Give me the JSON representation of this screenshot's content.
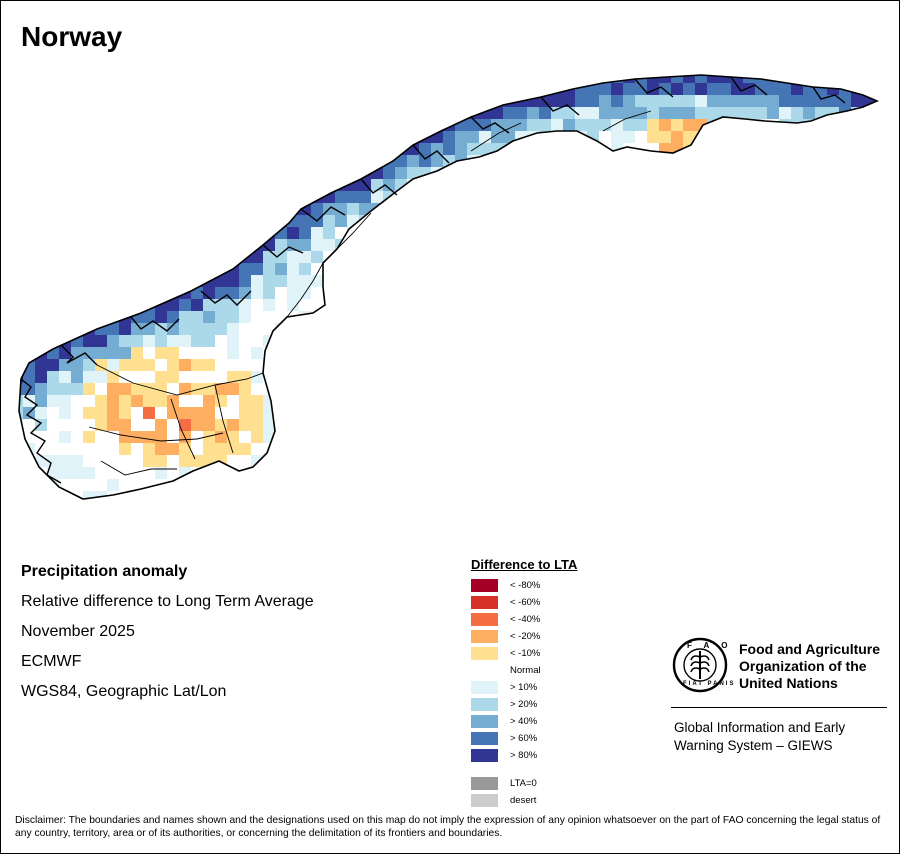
{
  "title": "Norway",
  "info": {
    "heading": "Precipitation anomaly",
    "subtitle": "Relative difference to Long Term Average",
    "period": "November 2025",
    "source": "ECMWF",
    "projection": "WGS84, Geographic Lat/Lon"
  },
  "legend": {
    "title": "Difference to LTA",
    "classes": [
      {
        "label": "< -80%",
        "color": "#a50026"
      },
      {
        "label": "< -60%",
        "color": "#d73027"
      },
      {
        "label": "< -40%",
        "color": "#f46d43"
      },
      {
        "label": "< -20%",
        "color": "#fdae61"
      },
      {
        "label": "< -10%",
        "color": "#fee090"
      },
      {
        "label": "Normal",
        "color": "#ffffff"
      },
      {
        "label": "> 10%",
        "color": "#e0f3f8"
      },
      {
        "label": "> 20%",
        "color": "#abd9e9"
      },
      {
        "label": "> 40%",
        "color": "#74add1"
      },
      {
        "label": "> 60%",
        "color": "#4575b4"
      },
      {
        "label": "> 80%",
        "color": "#313695"
      }
    ],
    "extra": [
      {
        "label": "LTA=0",
        "color": "#999999"
      },
      {
        "label": "desert",
        "color": "#cccccc"
      }
    ]
  },
  "organization": {
    "logo_text": "FAO",
    "logo_motto": "FIAT PANIS",
    "name_lines": [
      "Food and Agriculture",
      "Organization of the",
      "United Nations"
    ],
    "system_lines": [
      "Global Information and Early",
      "Warning System – GIEWS"
    ]
  },
  "disclaimer": "Disclaimer: The boundaries and names shown and the designations used on this map do not imply the expression of any opinion whatsoever on the part of FAO concerning the legal status of any country, territory, area or of its authorities, or concerning the delimitation of its frontiers and boundaries."
}
